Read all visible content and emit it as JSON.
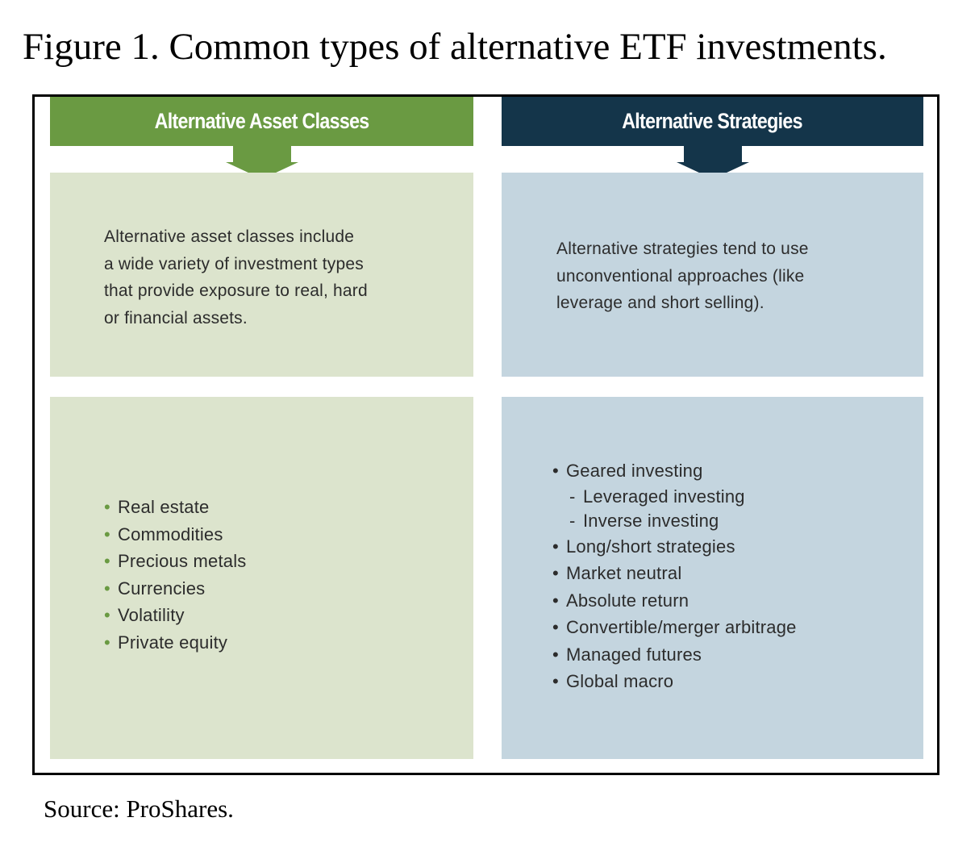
{
  "figure": {
    "caption": "Figure 1. Common types of alternative ETF investments.",
    "source": "Source: ProShares."
  },
  "colors": {
    "green_header": "#6a9a42",
    "navy_header": "#14354a",
    "green_box": "#dce4cd",
    "blue_box": "#c4d5df"
  },
  "left": {
    "header": "Alternative Asset Classes",
    "description": [
      "Alternative asset classes include",
      "a wide variety of investment types",
      "that provide exposure to real, hard",
      "or financial assets."
    ],
    "items": [
      "Real estate",
      "Commodities",
      "Precious metals",
      "Currencies",
      "Volatility",
      "Private equity"
    ]
  },
  "right": {
    "header": "Alternative Strategies",
    "description": [
      "Alternative strategies tend to use",
      "unconventional approaches (like",
      "leverage and short selling)."
    ],
    "items": [
      {
        "text": "Geared investing",
        "level": 0
      },
      {
        "text": "Leveraged investing",
        "level": 1
      },
      {
        "text": "Inverse investing",
        "level": 1
      },
      {
        "text": "Long/short strategies",
        "level": 0
      },
      {
        "text": "Market neutral",
        "level": 0
      },
      {
        "text": "Absolute return",
        "level": 0
      },
      {
        "text": "Convertible/merger arbitrage",
        "level": 0
      },
      {
        "text": "Managed futures",
        "level": 0
      },
      {
        "text": "Global macro",
        "level": 0
      }
    ]
  }
}
